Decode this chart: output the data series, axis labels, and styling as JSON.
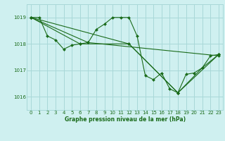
{
  "title": "Graphe pression niveau de la mer (hPa)",
  "bg_color": "#cff0f0",
  "grid_color": "#a8d8d8",
  "line_color": "#1a6b1a",
  "xlim": [
    -0.5,
    23.5
  ],
  "ylim": [
    1015.5,
    1019.5
  ],
  "yticks": [
    1016,
    1017,
    1018,
    1019
  ],
  "xticks": [
    0,
    1,
    2,
    3,
    4,
    5,
    6,
    7,
    8,
    9,
    10,
    11,
    12,
    13,
    14,
    15,
    16,
    17,
    18,
    19,
    20,
    21,
    22,
    23
  ],
  "series1": {
    "x": [
      0,
      1,
      2,
      3,
      4,
      5,
      6,
      7,
      8,
      9,
      10,
      11,
      12,
      13,
      14,
      15,
      16,
      17,
      18,
      19,
      20,
      21,
      22,
      23
    ],
    "y": [
      1019.0,
      1019.0,
      1018.3,
      1018.15,
      1017.8,
      1017.95,
      1018.0,
      1018.05,
      1018.55,
      1018.75,
      1019.0,
      1019.0,
      1019.0,
      1018.3,
      1016.8,
      1016.65,
      1016.9,
      1016.3,
      1016.15,
      1016.85,
      1016.9,
      1017.1,
      1017.55,
      1017.6
    ]
  },
  "series2": {
    "x": [
      0,
      7,
      23
    ],
    "y": [
      1019.0,
      1018.05,
      1017.55
    ]
  },
  "series3": {
    "x": [
      0,
      6,
      12,
      18,
      23
    ],
    "y": [
      1019.0,
      1018.0,
      1018.0,
      1016.15,
      1017.6
    ]
  },
  "series4": {
    "x": [
      0,
      12,
      18,
      21,
      23
    ],
    "y": [
      1019.0,
      1018.0,
      1016.15,
      1017.1,
      1017.6
    ]
  }
}
